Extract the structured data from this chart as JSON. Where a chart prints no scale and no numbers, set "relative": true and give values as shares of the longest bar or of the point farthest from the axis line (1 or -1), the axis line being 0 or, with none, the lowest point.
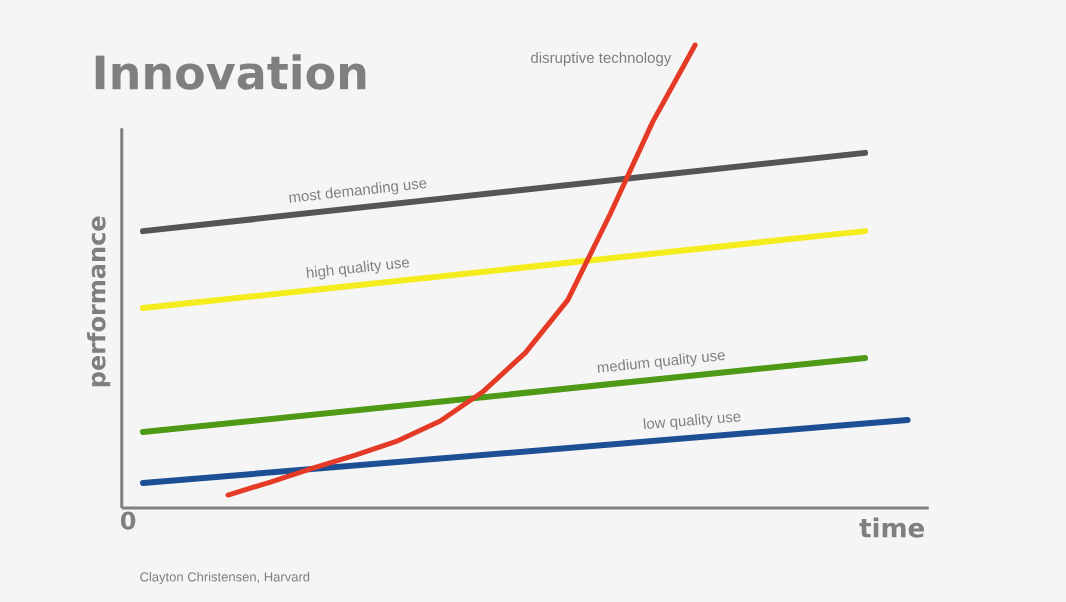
{
  "chart_data": {
    "type": "line",
    "title": "Innovation",
    "xlabel": "time",
    "ylabel": "performance",
    "relative": true,
    "marker": "none",
    "line_style": "solid",
    "categories": [
      null,
      null,
      null,
      null,
      null,
      null,
      null,
      null,
      null,
      null,
      null,
      null,
      null,
      null,
      null,
      null,
      null,
      null,
      null
    ],
    "series": [
      {
        "name": "most demanding use",
        "color": "#555555",
        "values": [
          0.598,
          null,
          null,
          null,
          null,
          null,
          null,
          null,
          null,
          null,
          null,
          null,
          null,
          null,
          null,
          null,
          null,
          0.767,
          null
        ]
      },
      {
        "name": "high quality use",
        "color": "#f5ec1e",
        "values": [
          0.432,
          null,
          null,
          null,
          null,
          null,
          null,
          null,
          null,
          null,
          null,
          null,
          null,
          null,
          null,
          null,
          null,
          0.598,
          null
        ]
      },
      {
        "name": "medium quality use",
        "color": "#4e9a16",
        "values": [
          0.164,
          null,
          null,
          null,
          null,
          null,
          null,
          null,
          null,
          null,
          null,
          null,
          null,
          null,
          null,
          null,
          null,
          0.324,
          null
        ]
      },
      {
        "name": "low quality use",
        "color": "#1c4f94",
        "values": [
          0.054,
          null,
          null,
          null,
          null,
          null,
          null,
          null,
          null,
          null,
          null,
          null,
          null,
          null,
          null,
          null,
          null,
          null,
          0.19
        ]
      },
      {
        "name": "disruptive technology",
        "color": "#e43a26",
        "values": [
          null,
          null,
          0.028,
          0.056,
          0.086,
          0.114,
          0.145,
          0.188,
          0.251,
          0.335,
          0.449,
          0.635,
          0.834,
          1,
          null,
          null,
          null,
          null,
          null
        ]
      }
    ],
    "annotations": [
      "0",
      "Clayton Christensen, Harvard"
    ]
  }
}
